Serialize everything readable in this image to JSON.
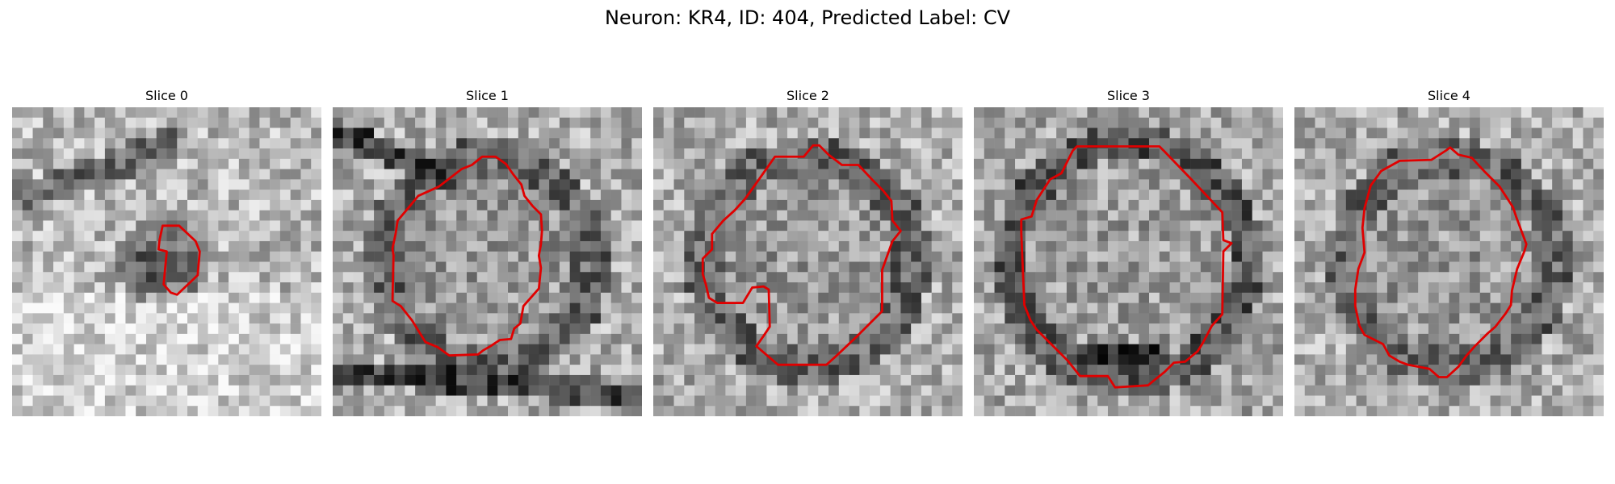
{
  "figure": {
    "title": "Neuron: KR4, ID: 404, Predicted Label: CV"
  },
  "panels": [
    {
      "title": "Slice 0"
    },
    {
      "title": "Slice 1"
    },
    {
      "title": "Slice 2"
    },
    {
      "title": "Slice 3"
    },
    {
      "title": "Slice 4"
    }
  ],
  "colors": {
    "contour": "#e00000",
    "background": "#ffffff"
  }
}
